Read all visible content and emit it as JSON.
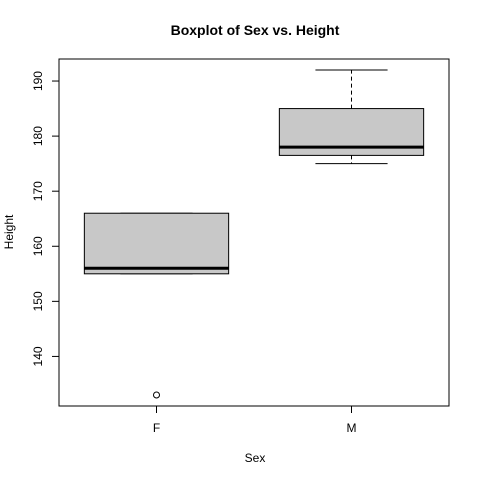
{
  "chart_data": {
    "type": "boxplot",
    "title": "Boxplot of Sex vs. Height",
    "xlabel": "Sex",
    "ylabel": "Height",
    "categories": [
      "F",
      "M"
    ],
    "ylim": [
      131,
      194
    ],
    "yticks": [
      140,
      150,
      160,
      170,
      180,
      190
    ],
    "box_fill": "#c8c8c8",
    "boxes": [
      {
        "category": "F",
        "whisker_low": 155,
        "q1": 155,
        "median": 156,
        "q3": 166,
        "whisker_high": 166,
        "outliers": [
          133
        ]
      },
      {
        "category": "M",
        "whisker_low": 175,
        "q1": 176.5,
        "median": 178,
        "q3": 185,
        "whisker_high": 192,
        "outliers": []
      }
    ]
  }
}
